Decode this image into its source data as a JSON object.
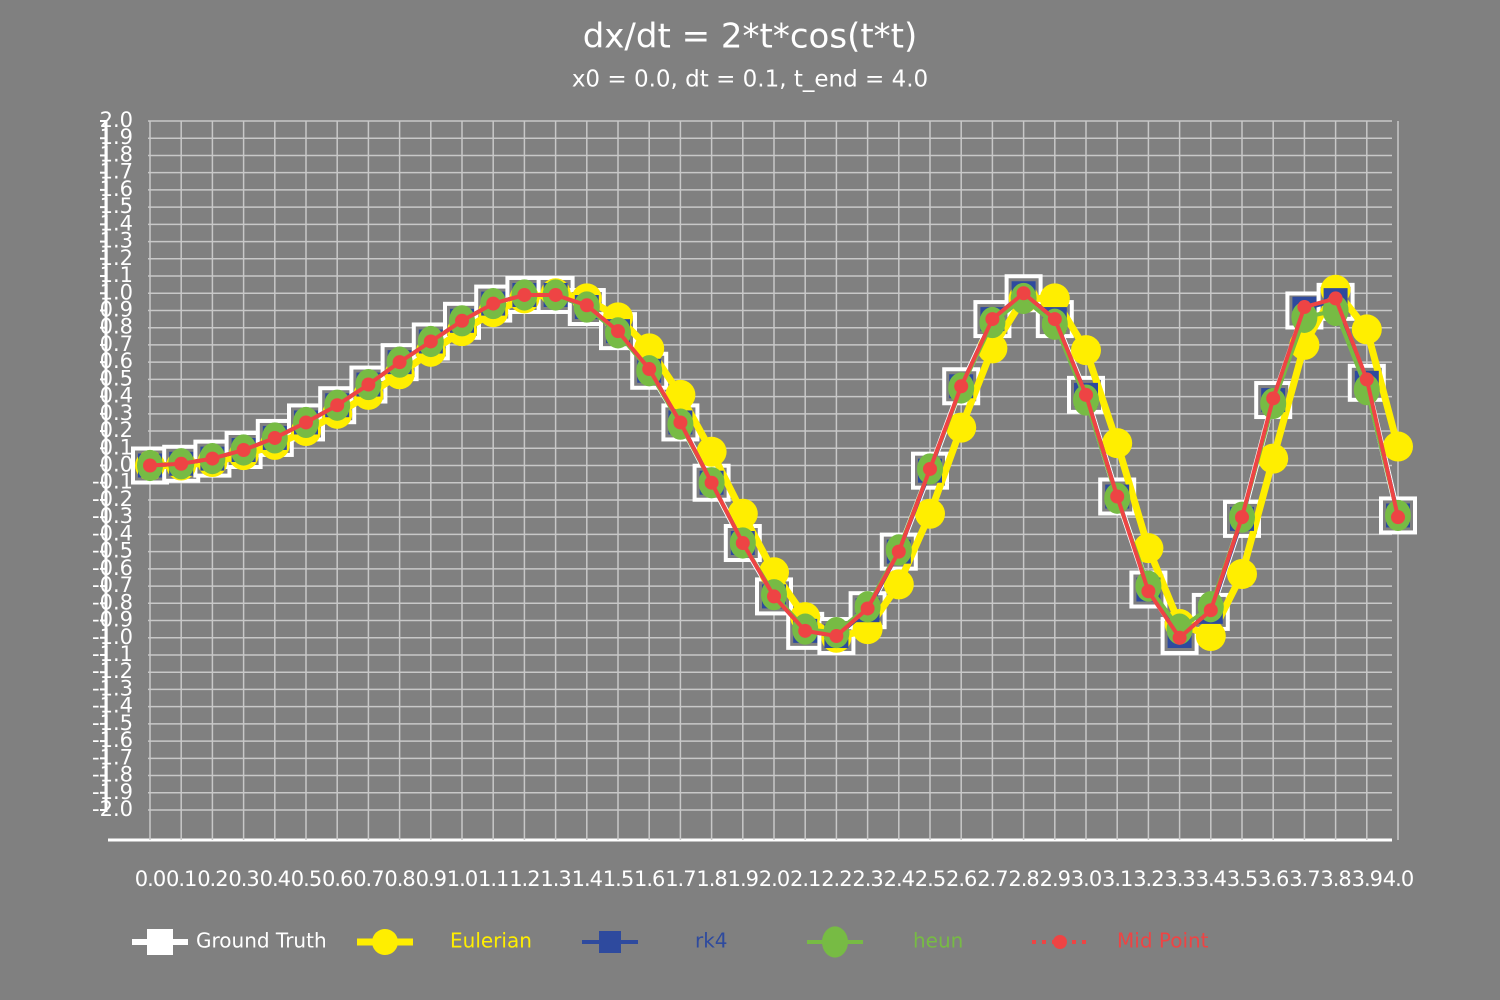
{
  "chart_data": {
    "type": "line",
    "title": "dx/dt = 2*t*cos(t*t)",
    "subtitle": "x0 = 0.0, dt = 0.1, t_end = 4.0",
    "categories": [
      "0.0",
      "0.1",
      "0.2",
      "0.3",
      "0.4",
      "0.5",
      "0.6",
      "0.7",
      "0.8",
      "0.9",
      "1.0",
      "1.1",
      "1.2",
      "1.3",
      "1.4",
      "1.5",
      "1.6",
      "1.7",
      "1.8",
      "1.9",
      "2.0",
      "2.1",
      "2.2",
      "2.3",
      "2.4",
      "2.5",
      "2.6",
      "2.7",
      "2.8",
      "2.9",
      "3.0",
      "3.1",
      "3.2",
      "3.3",
      "3.4",
      "3.5",
      "3.6",
      "3.7",
      "3.8",
      "3.9",
      "4.0"
    ],
    "series": [
      {
        "name": "Ground Truth",
        "color": "#ffffff",
        "values": [
          0,
          0.01,
          0.04,
          0.09,
          0.16,
          0.25,
          0.35,
          0.47,
          0.6,
          0.72,
          0.84,
          0.94,
          0.99,
          0.99,
          0.92,
          0.78,
          0.55,
          0.25,
          -0.1,
          -0.45,
          -0.76,
          -0.96,
          -0.99,
          -0.84,
          -0.5,
          -0.03,
          0.46,
          0.85,
          1.0,
          0.85,
          0.41,
          -0.18,
          -0.72,
          -0.99,
          -0.85,
          -0.31,
          0.38,
          0.9,
          0.95,
          0.48,
          -0.29
        ]
      },
      {
        "name": "Eulerian",
        "color": "#ffee00",
        "values": [
          0,
          0,
          0.02,
          0.06,
          0.12,
          0.2,
          0.3,
          0.41,
          0.53,
          0.66,
          0.78,
          0.89,
          0.97,
          1.0,
          0.97,
          0.86,
          0.68,
          0.41,
          0.08,
          -0.28,
          -0.62,
          -0.88,
          -1.0,
          -0.95,
          -0.69,
          -0.28,
          0.22,
          0.68,
          0.97,
          0.97,
          0.67,
          0.13,
          -0.48,
          -0.92,
          -0.99,
          -0.63,
          0.04,
          0.7,
          1.02,
          0.79,
          0.11
        ]
      },
      {
        "name": "rk4",
        "color": "#2e4a9e",
        "values": [
          0,
          0.01,
          0.04,
          0.09,
          0.16,
          0.25,
          0.35,
          0.47,
          0.6,
          0.72,
          0.84,
          0.94,
          0.99,
          0.99,
          0.92,
          0.78,
          0.55,
          0.25,
          -0.1,
          -0.45,
          -0.76,
          -0.96,
          -0.99,
          -0.84,
          -0.5,
          -0.03,
          0.46,
          0.85,
          1.0,
          0.85,
          0.41,
          -0.18,
          -0.72,
          -0.99,
          -0.85,
          -0.31,
          0.38,
          0.91,
          0.96,
          0.48,
          -0.29
        ]
      },
      {
        "name": "heun",
        "color": "#77bb44",
        "values": [
          0,
          0.01,
          0.04,
          0.09,
          0.16,
          0.25,
          0.35,
          0.47,
          0.6,
          0.72,
          0.84,
          0.94,
          0.99,
          0.99,
          0.92,
          0.77,
          0.55,
          0.24,
          -0.1,
          -0.45,
          -0.75,
          -0.95,
          -0.97,
          -0.82,
          -0.49,
          -0.02,
          0.45,
          0.83,
          0.97,
          0.82,
          0.38,
          -0.19,
          -0.7,
          -0.95,
          -0.82,
          -0.3,
          0.36,
          0.86,
          0.9,
          0.44,
          -0.29
        ]
      },
      {
        "name": "Mid Point",
        "color": "#ee4444",
        "values": [
          0,
          0.01,
          0.04,
          0.09,
          0.16,
          0.25,
          0.35,
          0.47,
          0.6,
          0.72,
          0.84,
          0.94,
          0.99,
          0.99,
          0.93,
          0.78,
          0.56,
          0.25,
          -0.1,
          -0.45,
          -0.76,
          -0.96,
          -0.99,
          -0.83,
          -0.5,
          -0.02,
          0.46,
          0.85,
          1.0,
          0.85,
          0.41,
          -0.18,
          -0.73,
          -1.0,
          -0.84,
          -0.3,
          0.39,
          0.92,
          0.97,
          0.5,
          -0.3
        ]
      }
    ],
    "ylim": [
      -2,
      2
    ],
    "yticks": [
      {
        "value": 2,
        "label": "2.0"
      },
      1.9,
      1.8,
      1.7,
      1.6,
      1.5,
      1.4,
      1.3,
      1.2,
      1.1,
      {
        "value": 1,
        "label": "1.0"
      },
      0.9,
      0.8,
      0.7,
      0.6,
      0.5,
      0.4,
      0.3,
      0.2,
      0.1,
      {
        "value": 0,
        "label": "0.0"
      },
      -0.1,
      -0.2,
      -0.3,
      -0.4,
      -0.5,
      -0.6,
      -0.7,
      -0.8,
      -0.9,
      {
        "value": -1,
        "label": "-1.0"
      },
      -1.1,
      -1.2,
      -1.3,
      -1.4,
      -1.5,
      -1.6,
      -1.7,
      -1.8,
      -1.9,
      {
        "value": -2,
        "label": "-2.0"
      }
    ],
    "grid": true,
    "legend": "bottom"
  }
}
